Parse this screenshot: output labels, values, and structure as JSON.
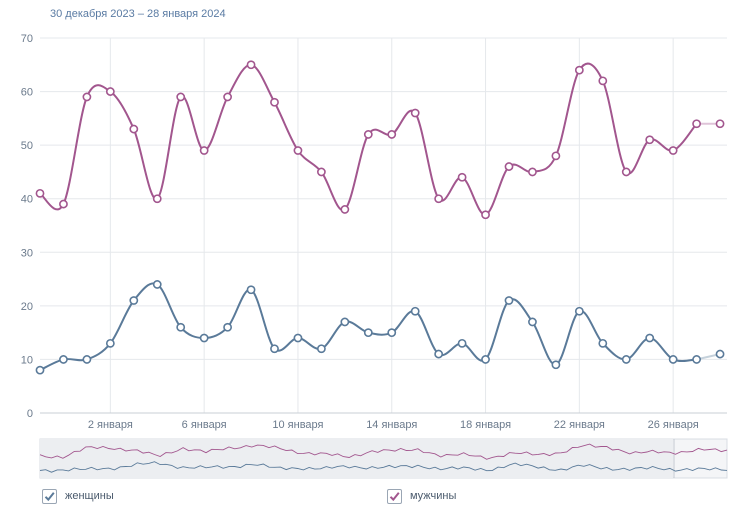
{
  "header": {
    "date_range": "30 декабря 2023 – 28 января 2024"
  },
  "colors": {
    "women": "#5a7a99",
    "men": "#a2568e",
    "grid": "#e5e8ec",
    "tick": "#6b7a8c"
  },
  "legend": {
    "women": {
      "label": "женщины",
      "checked": true,
      "icon": "checkbox-checked-icon"
    },
    "men": {
      "label": "мужчины",
      "checked": true,
      "icon": "checkbox-checked-icon"
    }
  },
  "chart_data": {
    "type": "line",
    "title": "",
    "xlabel": "",
    "ylabel": "",
    "ylim": [
      0,
      70
    ],
    "y_ticks": [
      0,
      10,
      20,
      30,
      40,
      50,
      60,
      70
    ],
    "x": [
      "2023-12-30",
      "2023-12-31",
      "2024-01-01",
      "2024-01-02",
      "2024-01-03",
      "2024-01-04",
      "2024-01-05",
      "2024-01-06",
      "2024-01-07",
      "2024-01-08",
      "2024-01-09",
      "2024-01-10",
      "2024-01-11",
      "2024-01-12",
      "2024-01-13",
      "2024-01-14",
      "2024-01-15",
      "2024-01-16",
      "2024-01-17",
      "2024-01-18",
      "2024-01-19",
      "2024-01-20",
      "2024-01-21",
      "2024-01-22",
      "2024-01-23",
      "2024-01-24",
      "2024-01-25",
      "2024-01-26",
      "2024-01-27",
      "2024-01-28"
    ],
    "x_tick_labels": [
      {
        "date": "2024-01-02",
        "label": "2 января"
      },
      {
        "date": "2024-01-06",
        "label": "6 января"
      },
      {
        "date": "2024-01-10",
        "label": "10 января"
      },
      {
        "date": "2024-01-14",
        "label": "14 января"
      },
      {
        "date": "2024-01-18",
        "label": "18 января"
      },
      {
        "date": "2024-01-22",
        "label": "22 января"
      },
      {
        "date": "2024-01-26",
        "label": "26 января"
      }
    ],
    "series": [
      {
        "name": "женщины",
        "color": "#5a7a99",
        "values": [
          8,
          10,
          10,
          13,
          21,
          24,
          16,
          14,
          16,
          23,
          12,
          14,
          12,
          17,
          15,
          15,
          19,
          11,
          13,
          10,
          21,
          17,
          9,
          19,
          13,
          10,
          14,
          10,
          10,
          11
        ]
      },
      {
        "name": "мужчины",
        "color": "#a2568e",
        "values": [
          41,
          39,
          59,
          60,
          53,
          40,
          59,
          49,
          59,
          65,
          58,
          49,
          45,
          38,
          52,
          52,
          56,
          40,
          44,
          37,
          46,
          45,
          48,
          64,
          62,
          45,
          51,
          49,
          54,
          54
        ]
      }
    ],
    "grid": true,
    "legend_position": "bottom"
  }
}
